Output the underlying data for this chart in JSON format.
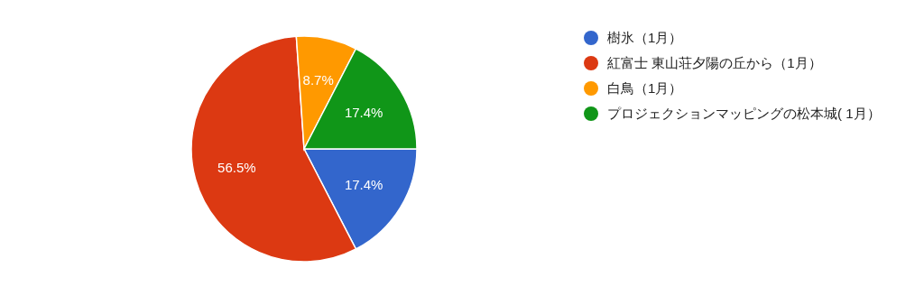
{
  "chart_data": {
    "type": "pie",
    "categories": [
      "樹氷（1月）",
      "紅富士 東山荘夕陽の丘から（1月）",
      "白鳥（1月）",
      "プロジェクションマッピングの松本城( 1月）"
    ],
    "values": [
      17.4,
      56.5,
      8.7,
      17.4
    ],
    "colors": [
      "#3366cc",
      "#dc3912",
      "#ff9900",
      "#109618"
    ],
    "value_labels": [
      "17.4%",
      "56.5%",
      "8.7%",
      "17.4%"
    ],
    "legend": "right"
  }
}
